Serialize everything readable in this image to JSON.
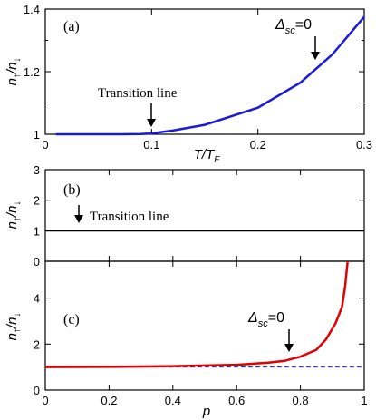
{
  "chart_data": [
    {
      "panel": "(a)",
      "type": "line",
      "xlabel": "T/T_F",
      "ylabel": "n↑/n↓",
      "xlim": [
        0,
        0.3
      ],
      "ylim": [
        1,
        1.4
      ],
      "xticks": [
        0,
        0.1,
        0.2,
        0.3
      ],
      "xtick_labels": [
        "0",
        "0.1",
        "0.2",
        "0.3"
      ],
      "yticks": [
        1,
        1.2,
        1.4
      ],
      "ytick_labels": [
        "1",
        "1.2",
        "1.4"
      ],
      "series": [
        {
          "color": "#1a1adb",
          "points": [
            [
              0.01,
              1.0
            ],
            [
              0.04,
              1.0
            ],
            [
              0.07,
              1.0
            ],
            [
              0.09,
              1.001
            ],
            [
              0.1,
              1.003
            ],
            [
              0.12,
              1.012
            ],
            [
              0.15,
              1.03
            ],
            [
              0.2,
              1.085
            ],
            [
              0.24,
              1.165
            ],
            [
              0.27,
              1.255
            ],
            [
              0.3,
              1.375
            ]
          ]
        }
      ],
      "annotations": [
        {
          "text": "Transition line",
          "x": 0.098,
          "y": 1.003
        },
        {
          "text": "Δsc=0",
          "x": 0.253,
          "y": 1.2
        }
      ]
    },
    {
      "panel": "(b)",
      "type": "line",
      "xlabel": "",
      "ylabel": "n↑/n↓",
      "xlim": [
        0,
        1
      ],
      "ylim": [
        0,
        3
      ],
      "yticks": [
        0,
        1,
        2,
        3
      ],
      "ytick_labels": [
        "0",
        "1",
        "2",
        "3"
      ],
      "series": [
        {
          "color": "#000000",
          "points": [
            [
              0,
              1
            ],
            [
              1,
              1
            ]
          ]
        }
      ],
      "annotations": [
        {
          "text": "Transition line",
          "x": 0.1,
          "y": 1.1
        }
      ]
    },
    {
      "panel": "(c)",
      "type": "line",
      "xlabel": "p",
      "ylabel": "n↑/n↓",
      "xlim": [
        0,
        1
      ],
      "ylim": [
        0,
        5.6
      ],
      "xticks": [
        0,
        0.2,
        0.4,
        0.6,
        0.8,
        1
      ],
      "xtick_labels": [
        "0",
        "0.2",
        "0.4",
        "0.6",
        "0.8",
        "1"
      ],
      "yticks": [
        0,
        2,
        4
      ],
      "ytick_labels": [
        "0",
        "2",
        "4"
      ],
      "series": [
        {
          "color": "#e00000",
          "points": [
            [
              0,
              1.0
            ],
            [
              0.2,
              1.01
            ],
            [
              0.4,
              1.04
            ],
            [
              0.6,
              1.1
            ],
            [
              0.7,
              1.19
            ],
            [
              0.75,
              1.27
            ],
            [
              0.8,
              1.45
            ],
            [
              0.85,
              1.75
            ],
            [
              0.88,
              2.2
            ],
            [
              0.91,
              2.9
            ],
            [
              0.93,
              3.6
            ],
            [
              0.94,
              4.5
            ],
            [
              0.948,
              5.6
            ]
          ]
        },
        {
          "color": "#1a1adb",
          "style": "dashed",
          "points": [
            [
              0,
              1
            ],
            [
              1,
              1
            ]
          ]
        }
      ],
      "annotations": [
        {
          "text": "Δsc=0",
          "x": 0.765,
          "y": 1.33
        }
      ]
    }
  ],
  "labels": {
    "panel_a": "(a)",
    "panel_b": "(b)",
    "panel_c": "(c)",
    "ylabel_main": "n",
    "ylabel_sep": "/n",
    "sub_up": "↑",
    "sub_down": "↓",
    "xlabel_a_T": "T",
    "xlabel_a_sep": "/T",
    "xlabel_a_sub": "F",
    "xlabel_c": "p",
    "transition_a": "Transition line",
    "transition_b": "Transition line",
    "delta_a": "Δ",
    "delta_sub_a": "sc",
    "delta_eq_a": "=0",
    "delta_c": "Δ",
    "delta_sub_c": "sc",
    "delta_eq_c": "=0"
  }
}
